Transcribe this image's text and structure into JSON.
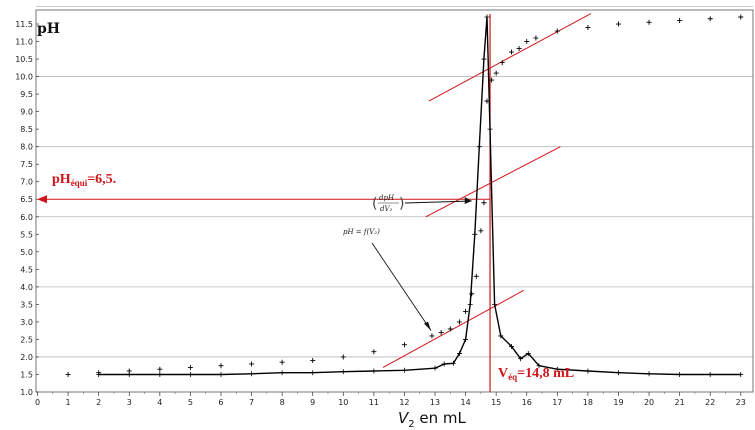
{
  "chart_data": {
    "type": "line",
    "ylabel": "pH",
    "xlabel_main": "V",
    "xlabel_sub": "2",
    "xlabel_rest": " en mL",
    "xlim": [
      -0.05,
      23.4
    ],
    "ylim": [
      1.0,
      11.9
    ],
    "x_ticks": [
      0,
      1,
      2,
      3,
      4,
      5,
      6,
      7,
      8,
      9,
      10,
      11,
      12,
      13,
      14,
      15,
      16,
      17,
      18,
      19,
      20,
      21,
      22,
      23
    ],
    "y_ticks": [
      1.0,
      1.5,
      2.0,
      2.5,
      3.0,
      3.5,
      4.0,
      4.5,
      5.0,
      5.5,
      6.0,
      6.5,
      7.0,
      7.5,
      8.0,
      8.5,
      9.0,
      9.5,
      10.0,
      10.5,
      11.0,
      11.5
    ],
    "y_tick_labels": [
      "1.0",
      "1.5",
      "2.0",
      "2.5",
      "3.0",
      "3.5",
      "4.0",
      "4.5",
      "5.0",
      "5.5",
      "6.0",
      "6.5",
      "7.0",
      "7.5",
      "8.0",
      "8.5",
      "9.0",
      "9.5",
      "10.0",
      "10.5",
      "11.0",
      "11.5"
    ],
    "gridlines_y": [
      2.0,
      4.0,
      6.0,
      8.0,
      10.0,
      12.0
    ],
    "series": [
      {
        "name": "pH = f(V2)",
        "style": "markers",
        "x": [
          1,
          2,
          3,
          4,
          5,
          6,
          7,
          8,
          9,
          10,
          11,
          12,
          12.9,
          13.2,
          13.5,
          13.8,
          14.0,
          14.2,
          14.35,
          14.5,
          14.6,
          14.7,
          14.85,
          15.0,
          15.2,
          15.5,
          15.75,
          16.0,
          16.3,
          17.0,
          18.0,
          19.0,
          20.0,
          21.0,
          22.0,
          23.0
        ],
        "y": [
          1.5,
          1.55,
          1.6,
          1.65,
          1.7,
          1.75,
          1.8,
          1.85,
          1.9,
          2.0,
          2.15,
          2.35,
          2.6,
          2.7,
          2.8,
          3.0,
          3.3,
          3.8,
          4.3,
          5.6,
          6.4,
          9.3,
          9.9,
          10.1,
          10.4,
          10.7,
          10.8,
          11.0,
          11.1,
          11.3,
          11.4,
          11.5,
          11.55,
          11.6,
          11.65,
          11.7
        ]
      },
      {
        "name": "dpH/dV2",
        "style": "line-markers",
        "x": [
          2,
          3,
          4,
          5,
          6,
          7,
          8,
          9,
          10,
          11,
          12,
          13,
          13.3,
          13.6,
          13.8,
          14.0,
          14.15,
          14.3,
          14.45,
          14.6,
          14.7,
          14.8,
          14.95,
          15.15,
          15.5,
          15.8,
          16.05,
          16.4,
          17,
          18,
          19,
          20,
          21,
          22,
          23
        ],
        "y": [
          1.5,
          1.5,
          1.5,
          1.5,
          1.5,
          1.52,
          1.55,
          1.55,
          1.58,
          1.6,
          1.62,
          1.68,
          1.8,
          1.82,
          2.1,
          2.5,
          3.5,
          5.5,
          8.0,
          10.5,
          11.7,
          8.5,
          3.5,
          2.6,
          2.3,
          1.95,
          2.1,
          1.75,
          1.65,
          1.6,
          1.55,
          1.52,
          1.5,
          1.5,
          1.5
        ]
      }
    ],
    "tangents": [
      {
        "from": [
          12.8,
          9.3
        ],
        "to": [
          18.1,
          11.8
        ]
      },
      {
        "from": [
          12.7,
          6.0
        ],
        "to": [
          17.1,
          8.0
        ]
      },
      {
        "from": [
          11.3,
          1.7
        ],
        "to": [
          15.9,
          3.9
        ]
      }
    ],
    "equivalence": {
      "x": 14.8,
      "y": 6.5
    },
    "annotations": {
      "ph_equi_main": "pH",
      "ph_equi_sub": "équi",
      "ph_equi_rest": "=6,5.",
      "veq_main": "V",
      "veq_sub": "éq",
      "veq_rest": "=14,8 mL",
      "curve_label": "pH = f(V₂)",
      "deriv_num": "dpH",
      "deriv_den": "dV₂"
    },
    "colors": {
      "curve": "#000000",
      "markers": "#000000",
      "annotation": "#d0141a",
      "grid": "#b8b8b8"
    }
  }
}
